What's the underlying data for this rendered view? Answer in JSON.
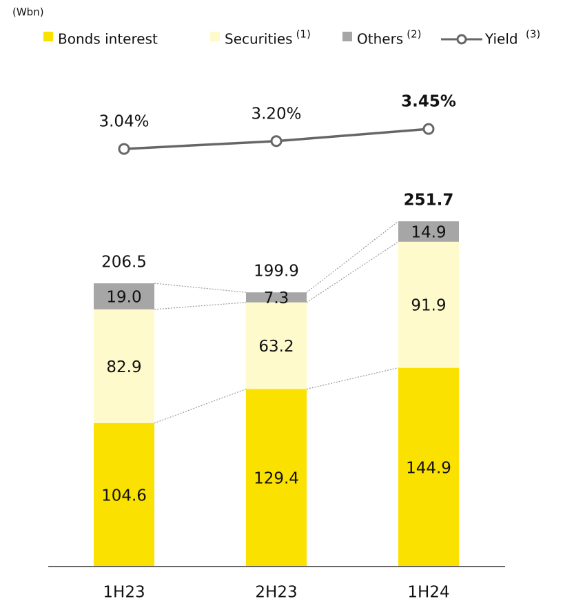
{
  "chart_data": {
    "type": "bar",
    "stacked": true,
    "unit_label": "(Wbn)",
    "categories": [
      "1H23",
      "2H23",
      "1H24"
    ],
    "series": [
      {
        "name": "Bonds interest",
        "color": "#fbe100",
        "values": [
          104.6,
          129.4,
          144.9
        ]
      },
      {
        "name": "Securities",
        "note": "(1)",
        "color": "#fffacb",
        "values": [
          82.9,
          63.2,
          91.9
        ]
      },
      {
        "name": "Others",
        "note": "(2)",
        "color": "#a6a6a6",
        "values": [
          19.0,
          7.3,
          14.9
        ],
        "value_labels": [
          "19.0",
          "7.3",
          "14.9"
        ]
      },
      {
        "name": "Yield",
        "note": "(3)",
        "type": "line",
        "axis": "y2",
        "color": "#666666",
        "values": [
          3.04,
          3.2,
          3.45
        ],
        "value_labels": [
          "3.04%",
          "3.20%",
          "3.45%"
        ]
      }
    ],
    "totals": [
      206.5,
      199.9,
      251.7
    ]
  }
}
